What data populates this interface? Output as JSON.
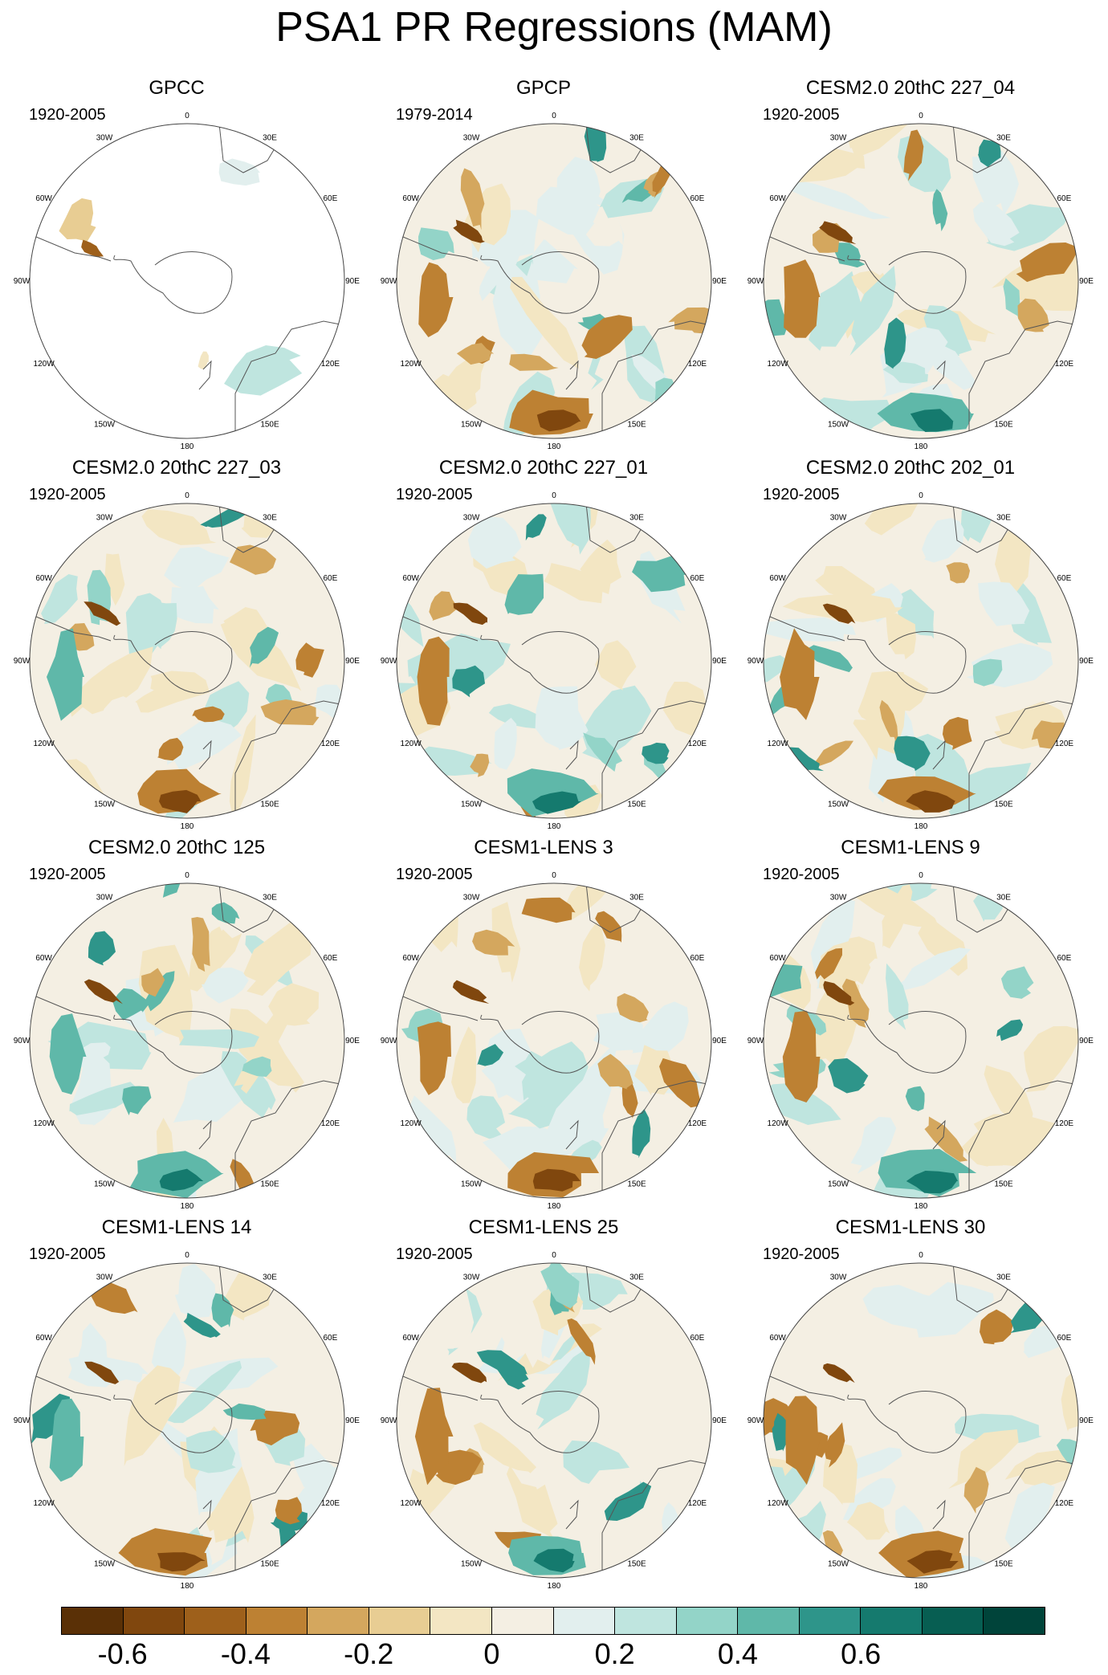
{
  "title": "PSA1 PR Regressions (MAM)",
  "longitude_labels": [
    "0",
    "30E",
    "60E",
    "90E",
    "120E",
    "150E",
    "180",
    "150W",
    "120W",
    "90W",
    "60W",
    "30W"
  ],
  "panels": [
    {
      "title": "GPCC",
      "period": "1920-2005",
      "style": "obs-sparse"
    },
    {
      "title": "GPCP",
      "period": "1979-2014",
      "style": "gpcp"
    },
    {
      "title": "CESM2.0 20thC 227_04",
      "period": "1920-2005",
      "style": "model"
    },
    {
      "title": "CESM2.0 20thC 227_03",
      "period": "1920-2005",
      "style": "model"
    },
    {
      "title": "CESM2.0 20thC 227_01",
      "period": "1920-2005",
      "style": "model"
    },
    {
      "title": "CESM2.0 20thC 202_01",
      "period": "1920-2005",
      "style": "model"
    },
    {
      "title": "CESM2.0 20thC 125",
      "period": "1920-2005",
      "style": "model"
    },
    {
      "title": "CESM1-LENS 3",
      "period": "1920-2005",
      "style": "model"
    },
    {
      "title": "CESM1-LENS 9",
      "period": "1920-2005",
      "style": "model"
    },
    {
      "title": "CESM1-LENS 14",
      "period": "1920-2005",
      "style": "model"
    },
    {
      "title": "CESM1-LENS 25",
      "period": "1920-2005",
      "style": "model"
    },
    {
      "title": "CESM1-LENS 30",
      "period": "1920-2005",
      "style": "model"
    }
  ],
  "colorbar": {
    "colors": [
      "#5a3006",
      "#80470e",
      "#9e601b",
      "#bd8133",
      "#d4a75e",
      "#e8cd93",
      "#f3e6c3",
      "#f4efe3",
      "#e2efee",
      "#bfe5df",
      "#93d4c8",
      "#5fb8a9",
      "#2e958a",
      "#157a6e",
      "#075e52",
      "#00443a"
    ],
    "labels": [
      "-0.6",
      "-0.4",
      "-0.2",
      "0",
      "0.2",
      "0.4",
      "0.6"
    ]
  }
}
